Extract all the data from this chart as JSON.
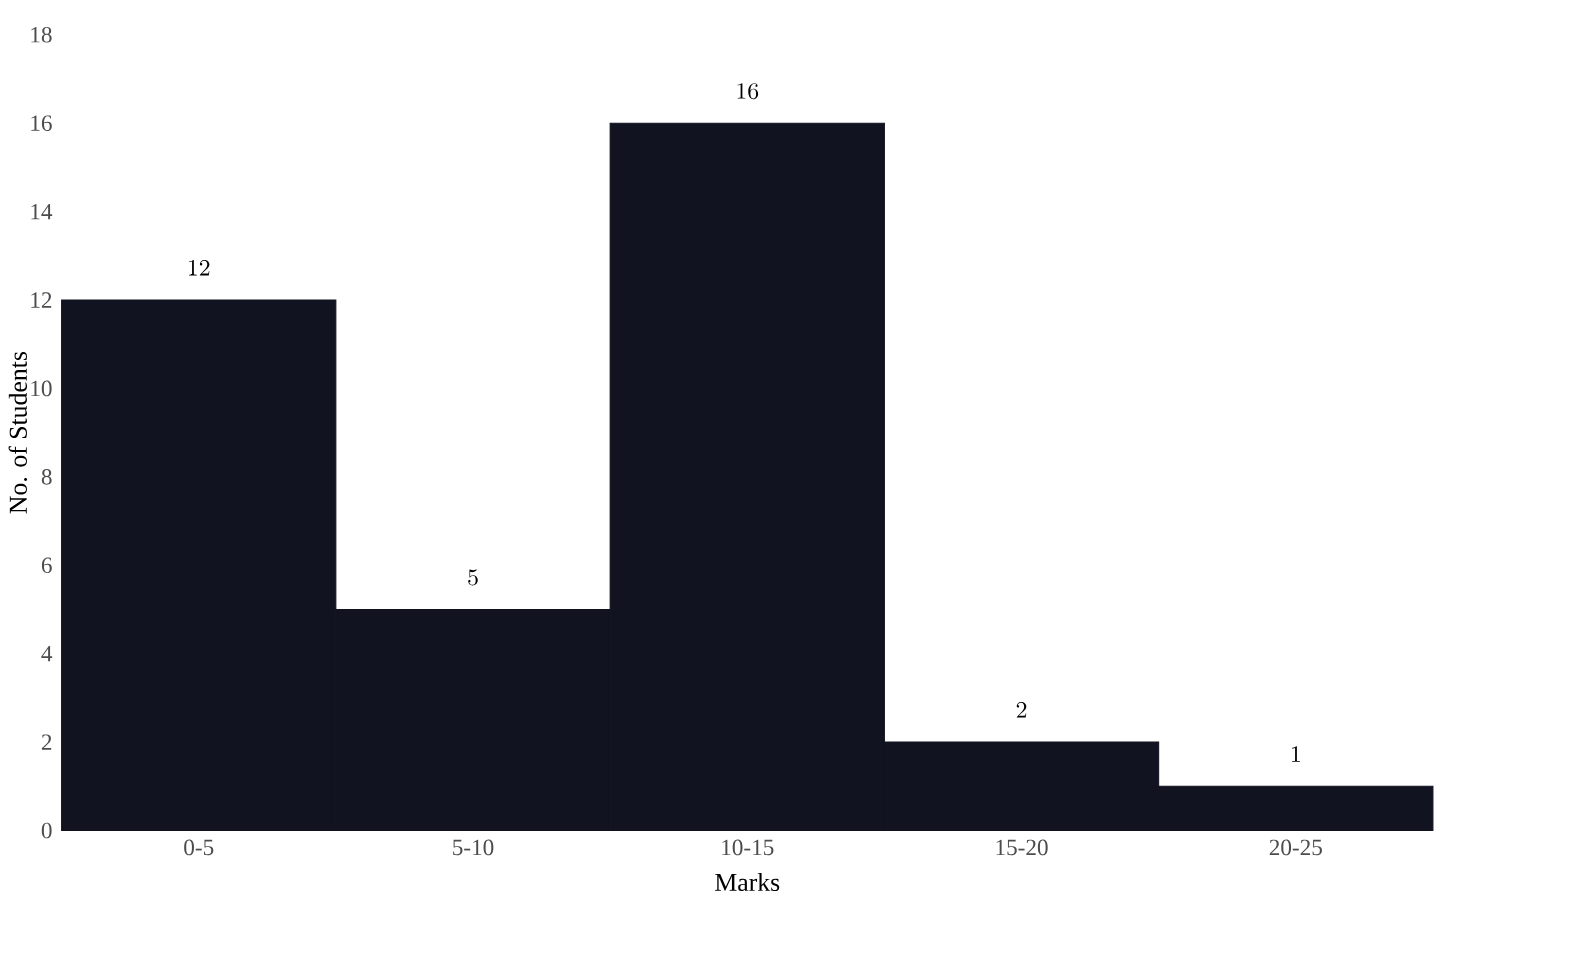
{
  "chart_data": {
    "type": "bar",
    "xlabel": "Marks",
    "ylabel": "No. of Students",
    "categories": [
      "0-5",
      "5-10",
      "10-15",
      "15-20",
      "20-25"
    ],
    "values": [
      12,
      5,
      16,
      2,
      1
    ],
    "color": "#111420",
    "ylim": [
      0,
      18
    ],
    "yticks": [
      0,
      2,
      4,
      6,
      8,
      10,
      12,
      14,
      16,
      18
    ],
    "data_labels": true
  }
}
